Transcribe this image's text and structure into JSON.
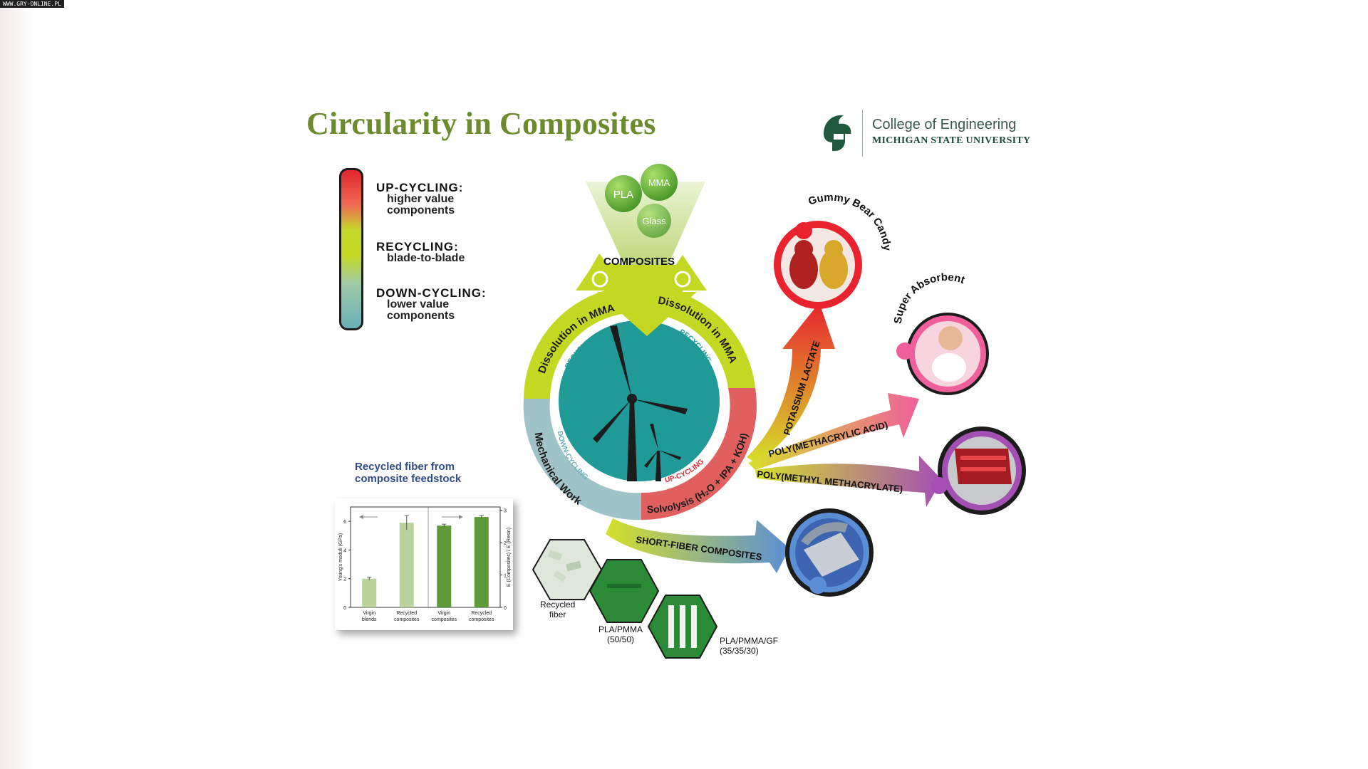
{
  "watermark": "WWW.GRY-ONLINE.PL",
  "title": "Circularity in Composites",
  "logo": {
    "line1": "College of Engineering",
    "line2": "MICHIGAN STATE UNIVERSITY",
    "mark_icon": "spartan-helmet-icon"
  },
  "legend": {
    "items": [
      {
        "head": "UP-CYCLING:",
        "sub": [
          "higher value",
          "components"
        ],
        "color": "#e0262e"
      },
      {
        "head": "RECYCLING:",
        "sub": [
          "blade-to-blade"
        ],
        "color": "#c3d823"
      },
      {
        "head": "DOWN-CYCLING:",
        "sub": [
          "lower value",
          "components"
        ],
        "color": "#6ab0b8"
      }
    ]
  },
  "funnel": {
    "inputs": [
      "PLA",
      "MMA",
      "Glass"
    ],
    "label": "COMPOSITES"
  },
  "ring": {
    "segments": {
      "recycling_left": {
        "process": "Dissolution in MMA",
        "tag": "RECYCLING",
        "color": "#c3d823"
      },
      "recycling_right": {
        "process": "Dissolution in MMA",
        "tag": "RECYCLING",
        "color": "#c3d823"
      },
      "downcycling": {
        "process": "Mechanical Work",
        "tag": "DOWN-CYCLING",
        "color": "#9fc3c8"
      },
      "upcycling": {
        "process": "Solvolysis (H₂O + IPA + KOH)",
        "tag": "UP-CYCLING",
        "color": "#e06060"
      }
    },
    "center_icon": "wind-turbine-icon",
    "center_color": "#1f9a96"
  },
  "products": [
    {
      "arrow": "POTASSIUM LACTATE",
      "item": "Gummy Bear Candy"
    },
    {
      "arrow": "POLY(METHACRYLIC ACID)",
      "item": "Super Absorbent"
    },
    {
      "arrow": "POLY(METHYL METHACRYLATE)",
      "item": "tail-light"
    },
    {
      "arrow": "SHORT-FIBER COMPOSITES",
      "item": "telephone"
    }
  ],
  "samples": {
    "recycled_fiber": [
      "Recycled",
      "fiber"
    ],
    "pla_pmma": [
      "PLA/PMMA",
      "(50/50)"
    ],
    "pla_pmma_gf": [
      "PLA/PMMA/GF",
      "(35/35/30)"
    ]
  },
  "chart_data": {
    "type": "bar",
    "title": "Recycled fiber from composite feedstock",
    "categories": [
      "Virgin blends",
      "Recycled composites",
      "Virgin composites",
      "Recycled composites"
    ],
    "values": [
      2.0,
      5.9,
      5.7,
      6.3
    ],
    "errors": [
      0.1,
      0.5,
      0.1,
      0.1
    ],
    "colors": [
      "#b9d39a",
      "#b9d39a",
      "#5f9a3a",
      "#5f9a3a"
    ],
    "ylabel": "Young's moduli (GPa)",
    "ylabel_right": "E (Composites) / E (Resin)",
    "ylim": [
      0,
      7
    ],
    "y_ticks": [
      "0",
      "2",
      "4",
      "6"
    ],
    "right_ticks": [
      "0",
      "1",
      "2",
      "3"
    ],
    "right_ylim": [
      0,
      3.1
    ],
    "grid": false
  }
}
